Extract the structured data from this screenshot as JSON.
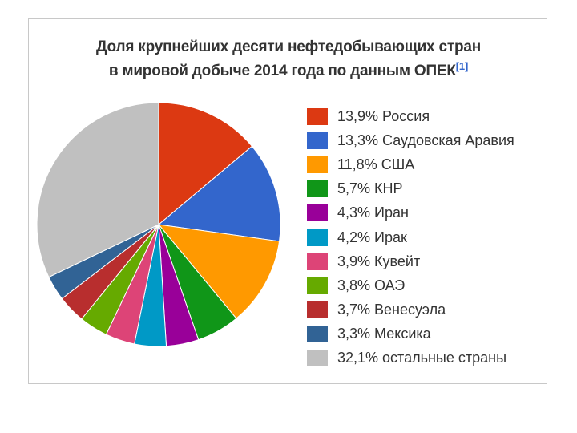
{
  "chart_data": {
    "type": "pie",
    "title_line1": "Доля крупнейших десяти нефтедобывающих стран",
    "title_line2": "в мировой добыче 2014 года по данным ОПЕК",
    "title_ref": "[1]",
    "slices": [
      {
        "label": "13,9% Россия",
        "value": 13.9,
        "color": "#dc3912"
      },
      {
        "label": "13,3% Саудовская Аравия",
        "value": 13.3,
        "color": "#3366cc"
      },
      {
        "label": "11,8% США",
        "value": 11.8,
        "color": "#ff9900"
      },
      {
        "label": "5,7% КНР",
        "value": 5.7,
        "color": "#109618"
      },
      {
        "label": "4,3% Иран",
        "value": 4.3,
        "color": "#990099"
      },
      {
        "label": "4,2% Ирак",
        "value": 4.2,
        "color": "#0099c6"
      },
      {
        "label": "3,9% Кувейт",
        "value": 3.9,
        "color": "#dd4477"
      },
      {
        "label": "3,8% ОАЭ",
        "value": 3.8,
        "color": "#66aa00"
      },
      {
        "label": "3,7% Венесуэла",
        "value": 3.7,
        "color": "#b82e2e"
      },
      {
        "label": "3,3% Мексика",
        "value": 3.3,
        "color": "#316395"
      },
      {
        "label": "32,1% остальные страны",
        "value": 32.1,
        "color": "#c0c0c0"
      }
    ],
    "legend_position": "right"
  }
}
